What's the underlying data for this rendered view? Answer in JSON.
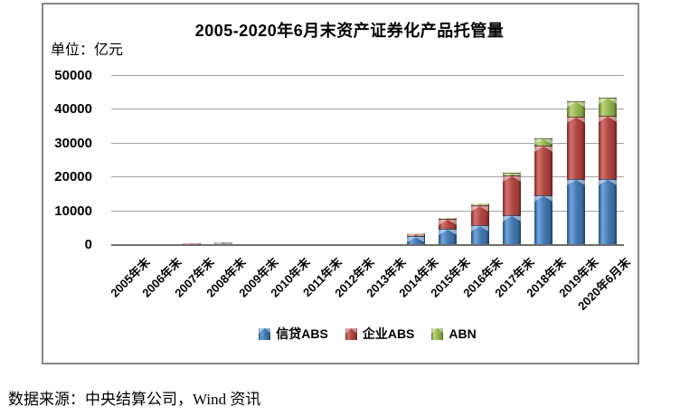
{
  "source_note": "数据来源：中央结算公司，Wind 资讯",
  "chart_data": {
    "type": "bar",
    "stacked": true,
    "title": "2005-2020年6月末资产证券化产品托管量",
    "unit_label": "单位：亿元",
    "categories": [
      "2005年末",
      "2006年末",
      "2007年末",
      "2008年末",
      "2009年末",
      "2010年末",
      "2011年末",
      "2012年末",
      "2013年末",
      "2014年末",
      "2015年末",
      "2016年末",
      "2017年末",
      "2018年末",
      "2019年末",
      "2020年6月末"
    ],
    "series": [
      {
        "name": "信贷ABS",
        "color": "#4f81bd",
        "values": [
          170,
          200,
          250,
          500,
          200,
          150,
          100,
          200,
          150,
          2800,
          4800,
          6000,
          8800,
          14800,
          19600,
          19500
        ]
      },
      {
        "name": "企业ABS",
        "color": "#c0504d",
        "values": [
          0,
          0,
          150,
          100,
          0,
          0,
          0,
          50,
          200,
          400,
          2900,
          5900,
          11700,
          14500,
          18300,
          18700
        ]
      },
      {
        "name": "ABN",
        "color": "#9bbb59",
        "values": [
          0,
          0,
          0,
          0,
          0,
          0,
          0,
          0,
          0,
          100,
          300,
          500,
          1000,
          2200,
          4600,
          5500
        ]
      }
    ],
    "ylabel": "",
    "xlabel": "",
    "ylim": [
      0,
      50000
    ],
    "yticks": [
      0,
      10000,
      20000,
      30000,
      40000,
      50000
    ],
    "grid": "horizontal",
    "legend_position": "bottom-inside",
    "frame_color": "#868686"
  }
}
